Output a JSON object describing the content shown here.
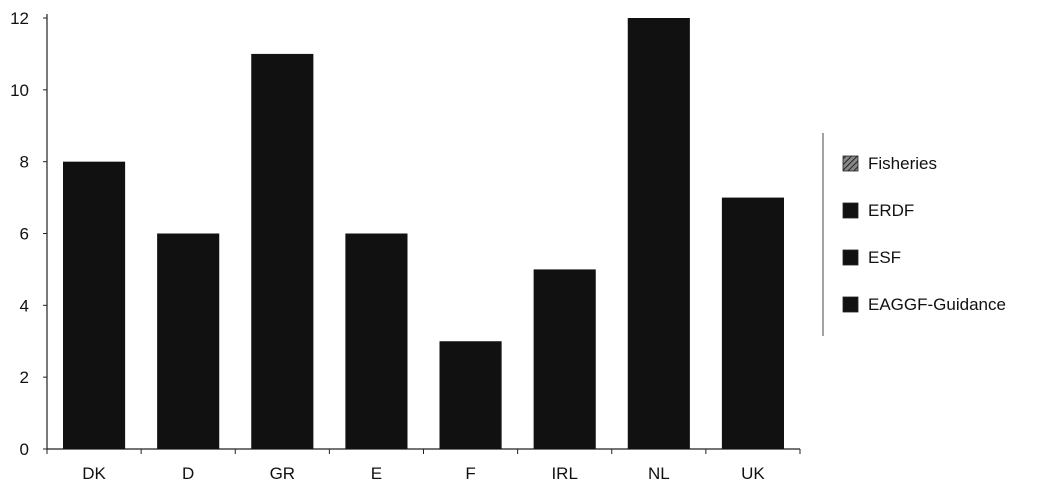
{
  "chart_data": {
    "type": "bar",
    "categories": [
      "DK",
      "D",
      "GR",
      "E",
      "F",
      "IRL",
      "NL",
      "UK"
    ],
    "values": [
      8,
      6,
      11,
      6,
      3,
      5,
      12,
      7
    ],
    "ylim": [
      0,
      12
    ],
    "yticks": [
      0,
      2,
      4,
      6,
      8,
      10,
      12
    ],
    "grid": false,
    "legend_placement": "right",
    "legend": [
      {
        "label": "Fisheries",
        "color": "#555555",
        "pattern": "hatch"
      },
      {
        "label": "ERDF",
        "color": "#111111"
      },
      {
        "label": "ESF",
        "color": "#111111"
      },
      {
        "label": "EAGGF-Guidance",
        "color": "#111111"
      }
    ],
    "bar_color": "#111111"
  }
}
